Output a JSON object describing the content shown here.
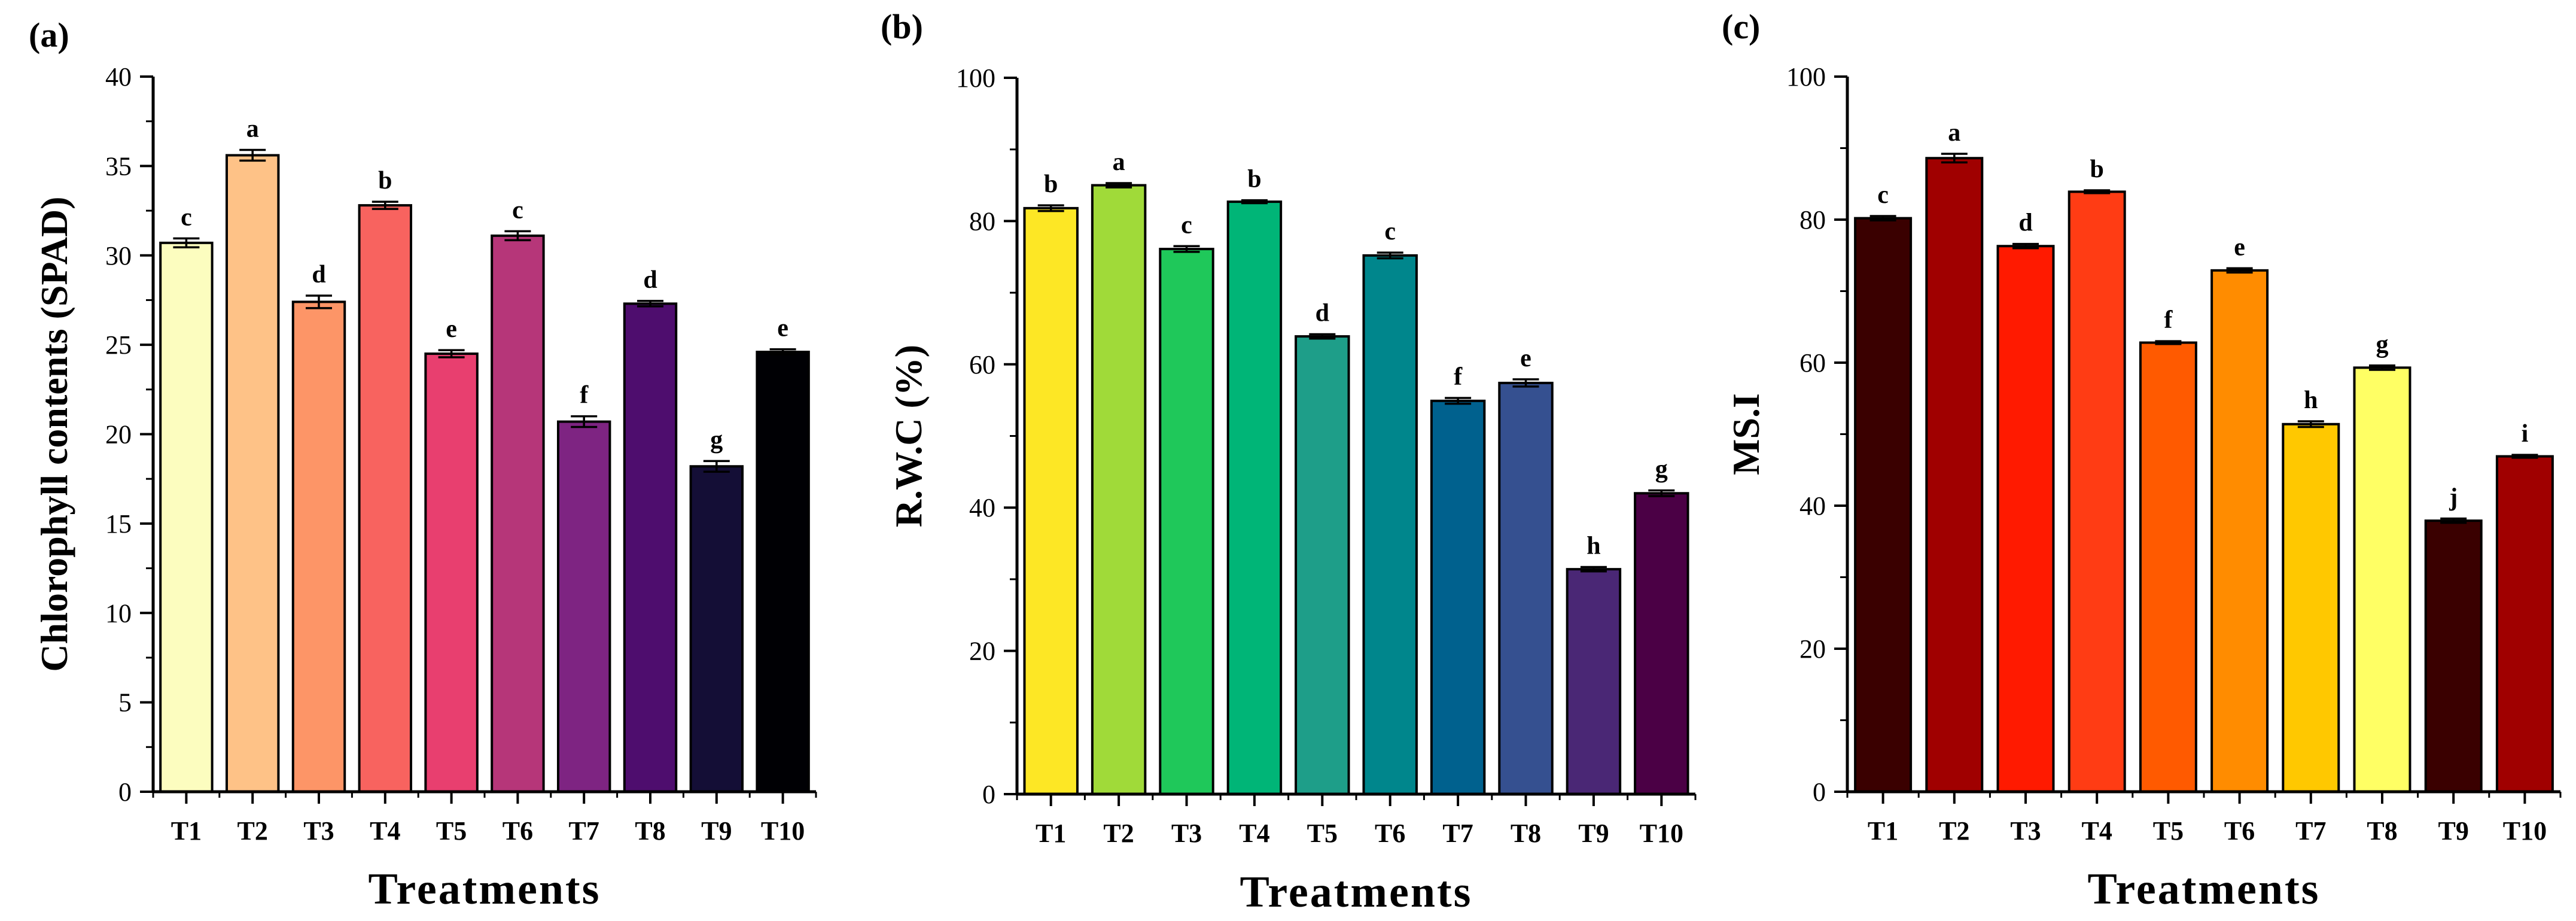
{
  "chart_data": [
    {
      "type": "bar",
      "panel_label": "(a)",
      "title": "",
      "xlabel": "Treatments",
      "ylabel": "Chlorophyll contents (SPAD)",
      "ylim": [
        0,
        40
      ],
      "yticks": [
        0,
        5,
        10,
        15,
        20,
        25,
        30,
        35,
        40
      ],
      "categories": [
        "T1",
        "T2",
        "T3",
        "T4",
        "T5",
        "T6",
        "T7",
        "T8",
        "T9",
        "T10"
      ],
      "values": [
        30.7,
        35.6,
        27.4,
        32.8,
        24.5,
        31.1,
        20.7,
        27.3,
        18.2,
        24.6
      ],
      "errors": [
        0.25,
        0.3,
        0.35,
        0.2,
        0.2,
        0.25,
        0.3,
        0.15,
        0.3,
        0.15
      ],
      "letters": [
        "c",
        "a",
        "d",
        "b",
        "e",
        "c",
        "f",
        "d",
        "g",
        "e"
      ],
      "colors": [
        "#FCFDBF",
        "#FEC287",
        "#FD9567",
        "#F8635F",
        "#E83F6F",
        "#B63679",
        "#7E2482",
        "#4E0D6E",
        "#140E36",
        "#000004"
      ]
    },
    {
      "type": "bar",
      "panel_label": "(b)",
      "title": "",
      "xlabel": "Treatments",
      "ylabel": "R.W.C (%)",
      "ylim": [
        0,
        100
      ],
      "yticks": [
        0,
        20,
        40,
        60,
        80,
        100
      ],
      "categories": [
        "T1",
        "T2",
        "T3",
        "T4",
        "T5",
        "T6",
        "T7",
        "T8",
        "T9",
        "T10"
      ],
      "values": [
        81.8,
        85.0,
        76.1,
        82.7,
        63.9,
        75.2,
        54.9,
        57.4,
        31.4,
        42.0
      ],
      "errors": [
        0.4,
        0.3,
        0.4,
        0.2,
        0.3,
        0.4,
        0.4,
        0.5,
        0.3,
        0.4
      ],
      "letters": [
        "b",
        "a",
        "c",
        "b",
        "d",
        "c",
        "f",
        "e",
        "h",
        "g"
      ],
      "colors": [
        "#FDE725",
        "#A0DA39",
        "#1FC85A",
        "#00B577",
        "#1E9E89",
        "#00868C",
        "#00618E",
        "#355090",
        "#4A2775",
        "#4B0045"
      ]
    },
    {
      "type": "bar",
      "panel_label": "(c)",
      "title": "",
      "xlabel": "Treatments",
      "ylabel": "MS.I",
      "ylim": [
        0,
        100
      ],
      "yticks": [
        0,
        20,
        40,
        60,
        80,
        100
      ],
      "categories": [
        "T1",
        "T2",
        "T3",
        "T4",
        "T5",
        "T6",
        "T7",
        "T8",
        "T9",
        "T10"
      ],
      "values": [
        80.2,
        88.6,
        76.3,
        83.9,
        62.8,
        72.9,
        51.4,
        59.3,
        37.9,
        46.9
      ],
      "errors": [
        0.3,
        0.6,
        0.3,
        0.2,
        0.2,
        0.3,
        0.4,
        0.3,
        0.3,
        0.2
      ],
      "letters": [
        "c",
        "a",
        "d",
        "b",
        "f",
        "e",
        "h",
        "g",
        "j",
        "i"
      ],
      "colors": [
        "#3A0000",
        "#A00000",
        "#FF1A00",
        "#FF3C14",
        "#FF5A00",
        "#FF8C00",
        "#FFC800",
        "#FFFF64",
        "#3A0000",
        "#A00000"
      ]
    }
  ]
}
